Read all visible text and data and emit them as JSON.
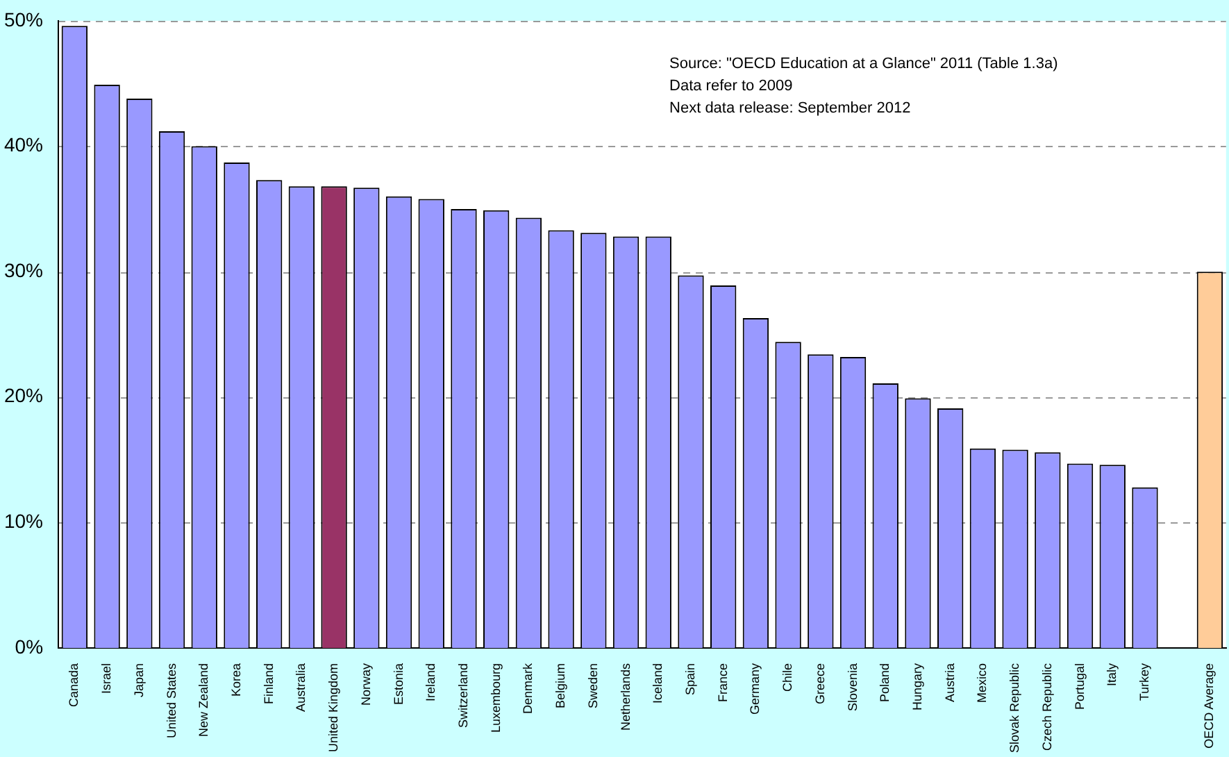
{
  "chart_data": {
    "type": "bar",
    "categories": [
      "Canada",
      "Israel",
      "Japan",
      "United States",
      "New Zealand",
      "Korea",
      "Finland",
      "Australia",
      "United Kingdom",
      "Norway",
      "Estonia",
      "Ireland",
      "Switzerland",
      "Luxembourg",
      "Denmark",
      "Belgium",
      "Sweden",
      "Netherlands",
      "Iceland",
      "Spain",
      "France",
      "Germany",
      "Chile",
      "Greece",
      "Slovenia",
      "Poland",
      "Hungary",
      "Austria",
      "Mexico",
      "Slovak Republic",
      "Czech Republic",
      "Portugal",
      "Italy",
      "Turkey",
      null,
      "OECD Average"
    ],
    "values": [
      49.6,
      44.9,
      43.8,
      41.2,
      40.0,
      38.7,
      37.3,
      36.8,
      36.8,
      36.7,
      36.0,
      35.8,
      35.0,
      34.9,
      34.3,
      33.3,
      33.1,
      32.8,
      32.8,
      29.7,
      28.9,
      26.3,
      24.4,
      23.4,
      23.2,
      21.1,
      19.9,
      19.1,
      15.9,
      15.8,
      15.6,
      14.7,
      14.6,
      12.8,
      null,
      30.0
    ],
    "colors": [
      "#9999ff",
      "#9999ff",
      "#9999ff",
      "#9999ff",
      "#9999ff",
      "#9999ff",
      "#9999ff",
      "#9999ff",
      "#993366",
      "#9999ff",
      "#9999ff",
      "#9999ff",
      "#9999ff",
      "#9999ff",
      "#9999ff",
      "#9999ff",
      "#9999ff",
      "#9999ff",
      "#9999ff",
      "#9999ff",
      "#9999ff",
      "#9999ff",
      "#9999ff",
      "#9999ff",
      "#9999ff",
      "#9999ff",
      "#9999ff",
      "#9999ff",
      "#9999ff",
      "#9999ff",
      "#9999ff",
      "#9999ff",
      "#9999ff",
      "#9999ff",
      "#9999ff",
      "#ffcc99"
    ],
    "ylim": [
      0,
      50
    ],
    "yticks": [
      {
        "value": 0,
        "label": "0%"
      },
      {
        "value": 10,
        "label": "10%"
      },
      {
        "value": 20,
        "label": "20%"
      },
      {
        "value": 30,
        "label": "30%"
      },
      {
        "value": 40,
        "label": "40%"
      },
      {
        "value": 50,
        "label": "50%"
      }
    ],
    "grid": "y",
    "legend": false,
    "annotations": [
      "Source: \"OECD Education at a Glance\" 2011 (Table 1.3a)",
      "Data refer to 2009",
      "Next data release: September 2012"
    ]
  }
}
